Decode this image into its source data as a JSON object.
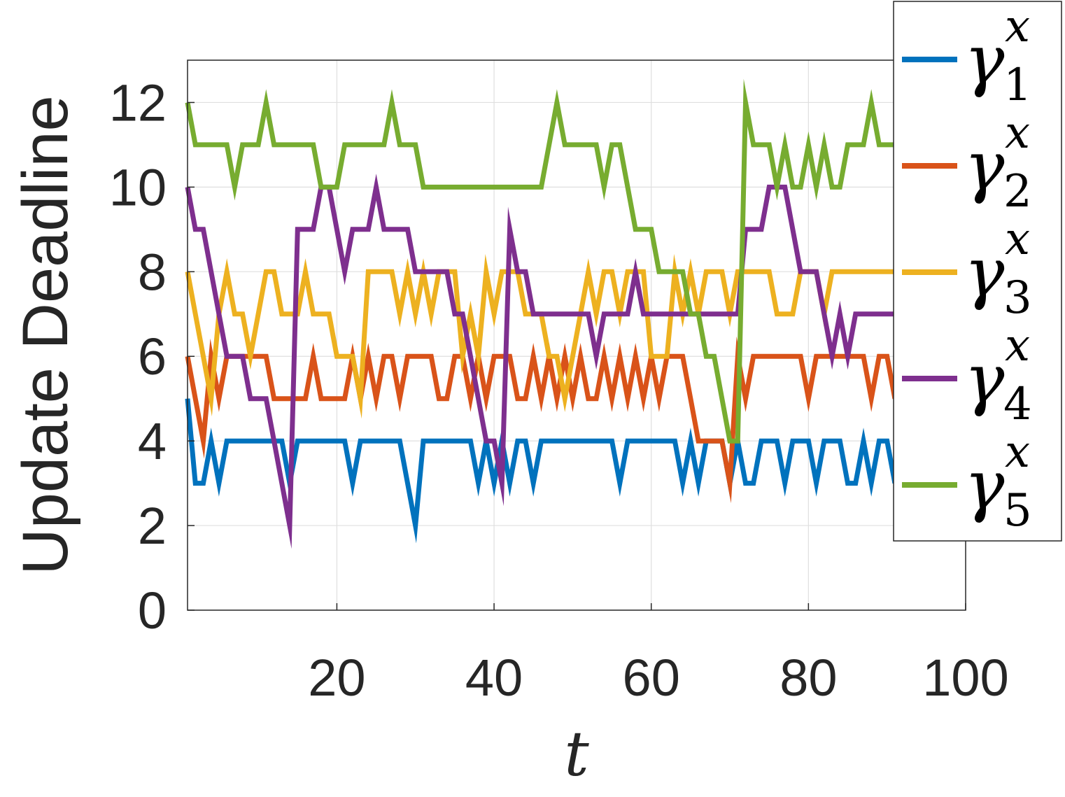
{
  "chart_data": {
    "type": "line",
    "title": "",
    "xlabel": "t",
    "ylabel": "Update Deadline",
    "xlim": [
      1,
      100
    ],
    "ylim": [
      0,
      13
    ],
    "xticks": [
      20,
      40,
      60,
      80,
      100
    ],
    "yticks": [
      0,
      2,
      4,
      6,
      8,
      10,
      12
    ],
    "grid": true,
    "legend_position": "top-right",
    "x": [
      1,
      2,
      3,
      4,
      5,
      6,
      7,
      8,
      9,
      10,
      11,
      12,
      13,
      14,
      15,
      16,
      17,
      18,
      19,
      20,
      21,
      22,
      23,
      24,
      25,
      26,
      27,
      28,
      29,
      30,
      31,
      32,
      33,
      34,
      35,
      36,
      37,
      38,
      39,
      40,
      41,
      42,
      43,
      44,
      45,
      46,
      47,
      48,
      49,
      50,
      51,
      52,
      53,
      54,
      55,
      56,
      57,
      58,
      59,
      60,
      61,
      62,
      63,
      64,
      65,
      66,
      67,
      68,
      69,
      70,
      71,
      72,
      73,
      74,
      75,
      76,
      77,
      78,
      79,
      80,
      81,
      82,
      83,
      84,
      85,
      86,
      87,
      88,
      89,
      90,
      91
    ],
    "series": [
      {
        "name": "γ",
        "subscript": "1",
        "superscript": "x",
        "color": "#0072BD",
        "values": [
          5,
          3,
          3,
          4,
          3,
          4,
          4,
          4,
          4,
          4,
          4,
          4,
          4,
          3,
          4,
          4,
          4,
          4,
          4,
          4,
          4,
          3,
          4,
          4,
          4,
          4,
          4,
          4,
          3,
          2,
          4,
          4,
          4,
          4,
          4,
          4,
          4,
          3,
          4,
          3,
          4,
          3,
          4,
          4,
          3,
          4,
          4,
          4,
          4,
          4,
          4,
          4,
          4,
          4,
          4,
          3,
          4,
          4,
          4,
          4,
          4,
          4,
          4,
          3,
          4,
          3,
          4,
          4,
          4,
          3,
          4,
          3,
          3,
          4,
          4,
          4,
          3,
          4,
          4,
          4,
          3,
          4,
          4,
          4,
          3,
          3,
          4,
          3,
          4,
          4,
          3
        ]
      },
      {
        "name": "γ",
        "subscript": "2",
        "superscript": "x",
        "color": "#D95319",
        "values": [
          6,
          5,
          4,
          6,
          5,
          6,
          6,
          6,
          6,
          6,
          6,
          5,
          5,
          5,
          5,
          5,
          6,
          5,
          5,
          5,
          5,
          6,
          5,
          6,
          5,
          6,
          6,
          5,
          6,
          6,
          6,
          6,
          5,
          5,
          6,
          6,
          5,
          6,
          5,
          6,
          6,
          6,
          5,
          5,
          6,
          5,
          6,
          5,
          6,
          5,
          6,
          5,
          5,
          6,
          5,
          6,
          5,
          6,
          5,
          6,
          5,
          6,
          6,
          6,
          5,
          4,
          4,
          4,
          4,
          3,
          6,
          5,
          6,
          6,
          6,
          6,
          6,
          6,
          6,
          5,
          6,
          6,
          6,
          6,
          6,
          6,
          6,
          5,
          6,
          6,
          5
        ]
      },
      {
        "name": "γ",
        "subscript": "3",
        "superscript": "x",
        "color": "#EDB120",
        "values": [
          8,
          7,
          6,
          5,
          7,
          8,
          7,
          7,
          6,
          7,
          8,
          8,
          7,
          7,
          7,
          8,
          7,
          7,
          7,
          6,
          6,
          6,
          5,
          8,
          8,
          8,
          8,
          7,
          8,
          7,
          8,
          7,
          8,
          8,
          8,
          6,
          7,
          6,
          8,
          7,
          8,
          8,
          8,
          7,
          7,
          7,
          6,
          6,
          5,
          6,
          7,
          8,
          7,
          8,
          8,
          7,
          8,
          8,
          8,
          6,
          6,
          6,
          8,
          7,
          8,
          7,
          8,
          8,
          8,
          7,
          8,
          8,
          8,
          8,
          8,
          7,
          7,
          7,
          8,
          8,
          8,
          7,
          8,
          8,
          8,
          8,
          8,
          8,
          8,
          8,
          8
        ]
      },
      {
        "name": "γ",
        "subscript": "4",
        "superscript": "x",
        "color": "#7E2F8E",
        "values": [
          10,
          9,
          9,
          8,
          7,
          6,
          6,
          6,
          5,
          5,
          5,
          4,
          3,
          2,
          9,
          9,
          9,
          10,
          10,
          9,
          8,
          9,
          9,
          9,
          10,
          9,
          9,
          9,
          9,
          8,
          8,
          8,
          8,
          8,
          7,
          7,
          6,
          5,
          4,
          4,
          3,
          9,
          8,
          8,
          7,
          7,
          7,
          7,
          7,
          7,
          7,
          7,
          6,
          7,
          7,
          7,
          7,
          8,
          7,
          7,
          7,
          7,
          7,
          7,
          7,
          7,
          7,
          7,
          7,
          7,
          7,
          9,
          9,
          9,
          10,
          10,
          10,
          9,
          8,
          8,
          8,
          7,
          6,
          7,
          6,
          7,
          7,
          7,
          7,
          7,
          7
        ]
      },
      {
        "name": "γ",
        "subscript": "5",
        "superscript": "x",
        "color": "#77AC30",
        "values": [
          12,
          11,
          11,
          11,
          11,
          11,
          10,
          11,
          11,
          11,
          12,
          11,
          11,
          11,
          11,
          11,
          11,
          10,
          10,
          10,
          11,
          11,
          11,
          11,
          11,
          11,
          12,
          11,
          11,
          11,
          10,
          10,
          10,
          10,
          10,
          10,
          10,
          10,
          10,
          10,
          10,
          10,
          10,
          10,
          10,
          10,
          11,
          12,
          11,
          11,
          11,
          11,
          11,
          10,
          11,
          11,
          10,
          9,
          9,
          9,
          8,
          8,
          8,
          8,
          7,
          7,
          6,
          6,
          5,
          4,
          4,
          12,
          11,
          11,
          11,
          10,
          11,
          10,
          10,
          11,
          10,
          11,
          10,
          10,
          11,
          11,
          11,
          12,
          11,
          11,
          11
        ]
      }
    ]
  }
}
